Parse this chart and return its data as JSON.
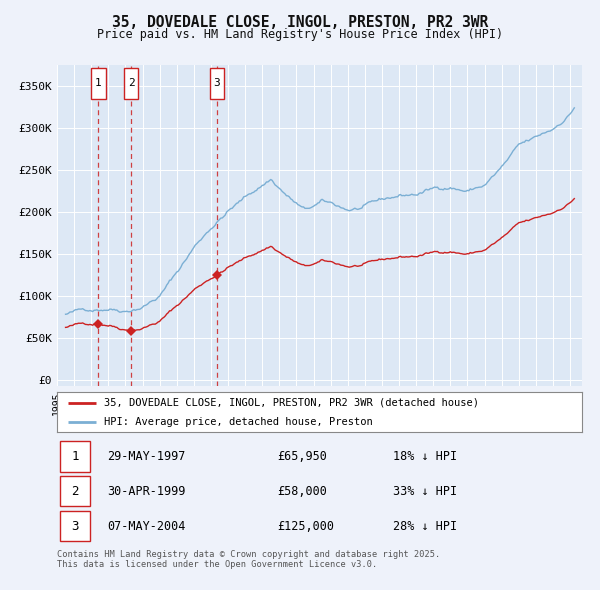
{
  "title": "35, DOVEDALE CLOSE, INGOL, PRESTON, PR2 3WR",
  "subtitle": "Price paid vs. HM Land Registry's House Price Index (HPI)",
  "legend_line1": "35, DOVEDALE CLOSE, INGOL, PRESTON, PR2 3WR (detached house)",
  "legend_line2": "HPI: Average price, detached house, Preston",
  "transactions": [
    {
      "num": 1,
      "date": "29-MAY-1997",
      "price": 65950,
      "pct": "18%",
      "dir": "↓"
    },
    {
      "num": 2,
      "date": "30-APR-1999",
      "price": 58000,
      "pct": "33%",
      "dir": "↓"
    },
    {
      "num": 3,
      "date": "07-MAY-2004",
      "price": 125000,
      "pct": "28%",
      "dir": "↓"
    }
  ],
  "transaction_dates_decimal": [
    1997.41,
    1999.33,
    2004.35
  ],
  "transaction_prices": [
    65950,
    58000,
    125000
  ],
  "hpi_color": "#7bafd4",
  "property_color": "#cc2222",
  "dashed_line_color": "#cc2222",
  "background_color": "#eef2fa",
  "plot_bg_color": "#dde8f5",
  "grid_color": "#ffffff",
  "yticks": [
    0,
    50000,
    100000,
    150000,
    200000,
    250000,
    300000,
    350000
  ],
  "ylim": [
    -8000,
    375000
  ],
  "xlim_start": 1995.2,
  "xlim_end": 2025.7,
  "footnote": "Contains HM Land Registry data © Crown copyright and database right 2025.\nThis data is licensed under the Open Government Licence v3.0."
}
